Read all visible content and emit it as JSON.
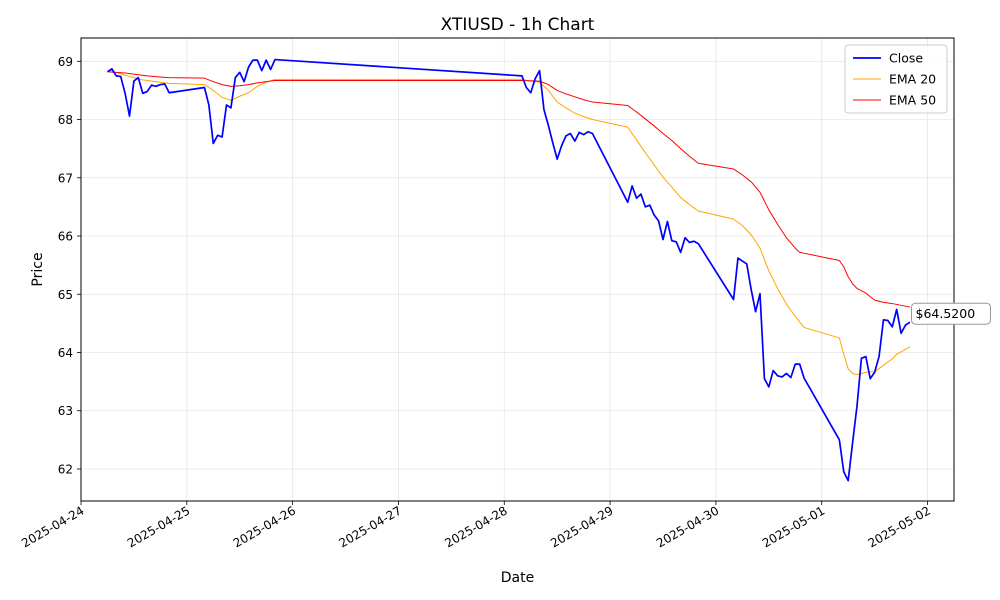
{
  "chart_data": {
    "type": "line",
    "title": "XTIUSD - 1h Chart",
    "xlabel": "Date",
    "ylabel": "Price",
    "xlim": [
      "2025-04-24T00:00",
      "2025-05-02T06:00"
    ],
    "ylim": [
      61.45,
      69.4
    ],
    "grid": true,
    "legend_position": "top-right",
    "x_ticks": [
      "2025-04-24",
      "2025-04-25",
      "2025-04-26",
      "2025-04-27",
      "2025-04-28",
      "2025-04-29",
      "2025-04-30",
      "2025-05-01",
      "2025-05-02"
    ],
    "y_ticks": [
      62,
      63,
      64,
      65,
      66,
      67,
      68,
      69
    ],
    "annotation": {
      "text": "$64.5200",
      "x": "2025-05-01T19:00",
      "y": 64.52
    },
    "series": [
      {
        "name": "Close",
        "color": "#0000ff",
        "points": [
          [
            "2025-04-24T06:00",
            68.82
          ],
          [
            "2025-04-24T07:00",
            68.87
          ],
          [
            "2025-04-24T08:00",
            68.75
          ],
          [
            "2025-04-24T09:00",
            68.74
          ],
          [
            "2025-04-24T10:00",
            68.45
          ],
          [
            "2025-04-24T11:00",
            68.06
          ],
          [
            "2025-04-24T12:00",
            68.66
          ],
          [
            "2025-04-24T13:00",
            68.72
          ],
          [
            "2025-04-24T14:00",
            68.45
          ],
          [
            "2025-04-24T15:00",
            68.48
          ],
          [
            "2025-04-24T16:00",
            68.59
          ],
          [
            "2025-04-24T17:00",
            68.57
          ],
          [
            "2025-04-24T18:00",
            68.6
          ],
          [
            "2025-04-24T19:00",
            68.61
          ],
          [
            "2025-04-24T20:00",
            68.46
          ],
          [
            "2025-04-25T04:00",
            68.55
          ],
          [
            "2025-04-25T05:00",
            68.25
          ],
          [
            "2025-04-25T06:00",
            67.59
          ],
          [
            "2025-04-25T07:00",
            67.73
          ],
          [
            "2025-04-25T08:00",
            67.7
          ],
          [
            "2025-04-25T09:00",
            68.25
          ],
          [
            "2025-04-25T10:00",
            68.2
          ],
          [
            "2025-04-25T11:00",
            68.72
          ],
          [
            "2025-04-25T12:00",
            68.81
          ],
          [
            "2025-04-25T13:00",
            68.65
          ],
          [
            "2025-04-25T14:00",
            68.9
          ],
          [
            "2025-04-25T15:00",
            69.02
          ],
          [
            "2025-04-25T16:00",
            69.02
          ],
          [
            "2025-04-25T17:00",
            68.84
          ],
          [
            "2025-04-25T18:00",
            69.02
          ],
          [
            "2025-04-25T19:00",
            68.86
          ],
          [
            "2025-04-25T20:00",
            69.03
          ],
          [
            "2025-04-28T04:00",
            68.75
          ],
          [
            "2025-04-28T05:00",
            68.55
          ],
          [
            "2025-04-28T06:00",
            68.46
          ],
          [
            "2025-04-28T07:00",
            68.7
          ],
          [
            "2025-04-28T08:00",
            68.84
          ],
          [
            "2025-04-28T09:00",
            68.17
          ],
          [
            "2025-04-28T10:00",
            67.9
          ],
          [
            "2025-04-28T11:00",
            67.6
          ],
          [
            "2025-04-28T12:00",
            67.32
          ],
          [
            "2025-04-28T13:00",
            67.55
          ],
          [
            "2025-04-28T14:00",
            67.72
          ],
          [
            "2025-04-28T15:00",
            67.76
          ],
          [
            "2025-04-28T16:00",
            67.63
          ],
          [
            "2025-04-28T17:00",
            67.78
          ],
          [
            "2025-04-28T18:00",
            67.74
          ],
          [
            "2025-04-28T19:00",
            67.79
          ],
          [
            "2025-04-28T20:00",
            67.76
          ],
          [
            "2025-04-29T04:00",
            66.58
          ],
          [
            "2025-04-29T05:00",
            66.86
          ],
          [
            "2025-04-29T06:00",
            66.65
          ],
          [
            "2025-04-29T07:00",
            66.72
          ],
          [
            "2025-04-29T08:00",
            66.5
          ],
          [
            "2025-04-29T09:00",
            66.53
          ],
          [
            "2025-04-29T10:00",
            66.36
          ],
          [
            "2025-04-29T11:00",
            66.26
          ],
          [
            "2025-04-29T12:00",
            65.94
          ],
          [
            "2025-04-29T13:00",
            66.25
          ],
          [
            "2025-04-29T14:00",
            65.92
          ],
          [
            "2025-04-29T15:00",
            65.9
          ],
          [
            "2025-04-29T16:00",
            65.72
          ],
          [
            "2025-04-29T17:00",
            65.97
          ],
          [
            "2025-04-29T18:00",
            65.89
          ],
          [
            "2025-04-29T19:00",
            65.91
          ],
          [
            "2025-04-29T20:00",
            65.87
          ],
          [
            "2025-04-30T04:00",
            64.91
          ],
          [
            "2025-04-30T05:00",
            65.62
          ],
          [
            "2025-04-30T06:00",
            65.57
          ],
          [
            "2025-04-30T07:00",
            65.52
          ],
          [
            "2025-04-30T08:00",
            65.08
          ],
          [
            "2025-04-30T09:00",
            64.7
          ],
          [
            "2025-04-30T10:00",
            65.01
          ],
          [
            "2025-04-30T11:00",
            63.55
          ],
          [
            "2025-04-30T12:00",
            63.41
          ],
          [
            "2025-04-30T13:00",
            63.69
          ],
          [
            "2025-04-30T14:00",
            63.6
          ],
          [
            "2025-04-30T15:00",
            63.58
          ],
          [
            "2025-04-30T16:00",
            63.64
          ],
          [
            "2025-04-30T17:00",
            63.57
          ],
          [
            "2025-04-30T18:00",
            63.8
          ],
          [
            "2025-04-30T19:00",
            63.8
          ],
          [
            "2025-04-30T20:00",
            63.56
          ],
          [
            "2025-05-01T04:00",
            62.5
          ],
          [
            "2025-05-01T05:00",
            61.95
          ],
          [
            "2025-05-01T06:00",
            61.8
          ],
          [
            "2025-05-01T07:00",
            62.45
          ],
          [
            "2025-05-01T08:00",
            63.08
          ],
          [
            "2025-05-01T09:00",
            63.9
          ],
          [
            "2025-05-01T10:00",
            63.93
          ],
          [
            "2025-05-01T11:00",
            63.55
          ],
          [
            "2025-05-01T12:00",
            63.66
          ],
          [
            "2025-05-01T13:00",
            63.93
          ],
          [
            "2025-05-01T14:00",
            64.56
          ],
          [
            "2025-05-01T15:00",
            64.55
          ],
          [
            "2025-05-01T16:00",
            64.44
          ],
          [
            "2025-05-01T17:00",
            64.74
          ],
          [
            "2025-05-01T18:00",
            64.33
          ],
          [
            "2025-05-01T19:00",
            64.47
          ],
          [
            "2025-05-01T20:00",
            64.52
          ]
        ]
      },
      {
        "name": "EMA 20",
        "color": "#ffa500",
        "points": [
          [
            "2025-04-24T06:00",
            68.82
          ],
          [
            "2025-04-24T08:00",
            68.81
          ],
          [
            "2025-04-24T10:00",
            68.76
          ],
          [
            "2025-04-24T12:00",
            68.72
          ],
          [
            "2025-04-24T14:00",
            68.68
          ],
          [
            "2025-04-24T17:00",
            68.65
          ],
          [
            "2025-04-24T20:00",
            68.62
          ],
          [
            "2025-04-25T04:00",
            68.6
          ],
          [
            "2025-04-25T06:00",
            68.5
          ],
          [
            "2025-04-25T08:00",
            68.38
          ],
          [
            "2025-04-25T10:00",
            68.33
          ],
          [
            "2025-04-25T12:00",
            68.4
          ],
          [
            "2025-04-25T14:00",
            68.46
          ],
          [
            "2025-04-25T16:00",
            68.57
          ],
          [
            "2025-04-25T18:00",
            68.64
          ],
          [
            "2025-04-25T20:00",
            68.69
          ],
          [
            "2025-04-28T04:00",
            68.69
          ],
          [
            "2025-04-28T06:00",
            68.66
          ],
          [
            "2025-04-28T08:00",
            68.64
          ],
          [
            "2025-04-28T10:00",
            68.5
          ],
          [
            "2025-04-28T12:00",
            68.3
          ],
          [
            "2025-04-28T14:00",
            68.2
          ],
          [
            "2025-04-28T16:00",
            68.11
          ],
          [
            "2025-04-28T18:00",
            68.05
          ],
          [
            "2025-04-28T20:00",
            68.0
          ],
          [
            "2025-04-29T04:00",
            67.87
          ],
          [
            "2025-04-29T06:00",
            67.65
          ],
          [
            "2025-04-29T08:00",
            67.43
          ],
          [
            "2025-04-29T10:00",
            67.22
          ],
          [
            "2025-04-29T12:00",
            67.01
          ],
          [
            "2025-04-29T14:00",
            66.84
          ],
          [
            "2025-04-29T16:00",
            66.66
          ],
          [
            "2025-04-29T18:00",
            66.54
          ],
          [
            "2025-04-29T20:00",
            66.43
          ],
          [
            "2025-04-30T04:00",
            66.29
          ],
          [
            "2025-04-30T06:00",
            66.18
          ],
          [
            "2025-04-30T08:00",
            66.02
          ],
          [
            "2025-04-30T10:00",
            65.79
          ],
          [
            "2025-04-30T12:00",
            65.4
          ],
          [
            "2025-04-30T14:00",
            65.1
          ],
          [
            "2025-04-30T16:00",
            64.83
          ],
          [
            "2025-04-30T18:00",
            64.62
          ],
          [
            "2025-04-30T20:00",
            64.43
          ],
          [
            "2025-05-01T04:00",
            64.25
          ],
          [
            "2025-05-01T05:00",
            63.97
          ],
          [
            "2025-05-01T06:00",
            63.72
          ],
          [
            "2025-05-01T07:00",
            63.64
          ],
          [
            "2025-05-01T08:00",
            63.62
          ],
          [
            "2025-05-01T10:00",
            63.66
          ],
          [
            "2025-05-01T12:00",
            63.67
          ],
          [
            "2025-05-01T14:00",
            63.78
          ],
          [
            "2025-05-01T16:00",
            63.89
          ],
          [
            "2025-05-01T17:00",
            63.97
          ],
          [
            "2025-05-01T18:00",
            64.01
          ],
          [
            "2025-05-01T20:00",
            64.1
          ]
        ]
      },
      {
        "name": "EMA 50",
        "color": "#ff0000",
        "points": [
          [
            "2025-04-24T06:00",
            68.82
          ],
          [
            "2025-04-24T10:00",
            68.8
          ],
          [
            "2025-04-24T12:00",
            68.78
          ],
          [
            "2025-04-24T15:00",
            68.75
          ],
          [
            "2025-04-24T18:00",
            68.73
          ],
          [
            "2025-04-24T20:00",
            68.72
          ],
          [
            "2025-04-25T04:00",
            68.71
          ],
          [
            "2025-04-25T06:00",
            68.65
          ],
          [
            "2025-04-25T08:00",
            68.6
          ],
          [
            "2025-04-25T10:00",
            68.57
          ],
          [
            "2025-04-25T12:00",
            68.58
          ],
          [
            "2025-04-25T14:00",
            68.6
          ],
          [
            "2025-04-25T16:00",
            68.63
          ],
          [
            "2025-04-25T18:00",
            68.65
          ],
          [
            "2025-04-25T20:00",
            68.67
          ],
          [
            "2025-04-28T04:00",
            68.67
          ],
          [
            "2025-04-28T08:00",
            68.66
          ],
          [
            "2025-04-28T10:00",
            68.6
          ],
          [
            "2025-04-28T12:00",
            68.5
          ],
          [
            "2025-04-28T14:00",
            68.44
          ],
          [
            "2025-04-28T16:00",
            68.39
          ],
          [
            "2025-04-28T18:00",
            68.34
          ],
          [
            "2025-04-28T20:00",
            68.3
          ],
          [
            "2025-04-29T04:00",
            68.24
          ],
          [
            "2025-04-29T06:00",
            68.13
          ],
          [
            "2025-04-29T08:00",
            68.01
          ],
          [
            "2025-04-29T10:00",
            67.89
          ],
          [
            "2025-04-29T12:00",
            67.76
          ],
          [
            "2025-04-29T14:00",
            67.64
          ],
          [
            "2025-04-29T16:00",
            67.5
          ],
          [
            "2025-04-29T18:00",
            67.37
          ],
          [
            "2025-04-29T20:00",
            67.25
          ],
          [
            "2025-04-30T04:00",
            67.15
          ],
          [
            "2025-04-30T06:00",
            67.05
          ],
          [
            "2025-04-30T08:00",
            66.93
          ],
          [
            "2025-04-30T10:00",
            66.75
          ],
          [
            "2025-04-30T12:00",
            66.45
          ],
          [
            "2025-04-30T14:00",
            66.2
          ],
          [
            "2025-04-30T16:00",
            65.97
          ],
          [
            "2025-04-30T18:00",
            65.79
          ],
          [
            "2025-04-30T19:00",
            65.72
          ],
          [
            "2025-05-01T04:00",
            65.58
          ],
          [
            "2025-05-01T05:00",
            65.47
          ],
          [
            "2025-05-01T06:00",
            65.3
          ],
          [
            "2025-05-01T07:00",
            65.18
          ],
          [
            "2025-05-01T08:00",
            65.1
          ],
          [
            "2025-05-01T10:00",
            65.02
          ],
          [
            "2025-05-01T12:00",
            64.9
          ],
          [
            "2025-05-01T14:00",
            64.86
          ],
          [
            "2025-05-01T16:00",
            64.84
          ],
          [
            "2025-05-01T18:00",
            64.81
          ],
          [
            "2025-05-01T20:00",
            64.78
          ]
        ]
      }
    ]
  }
}
